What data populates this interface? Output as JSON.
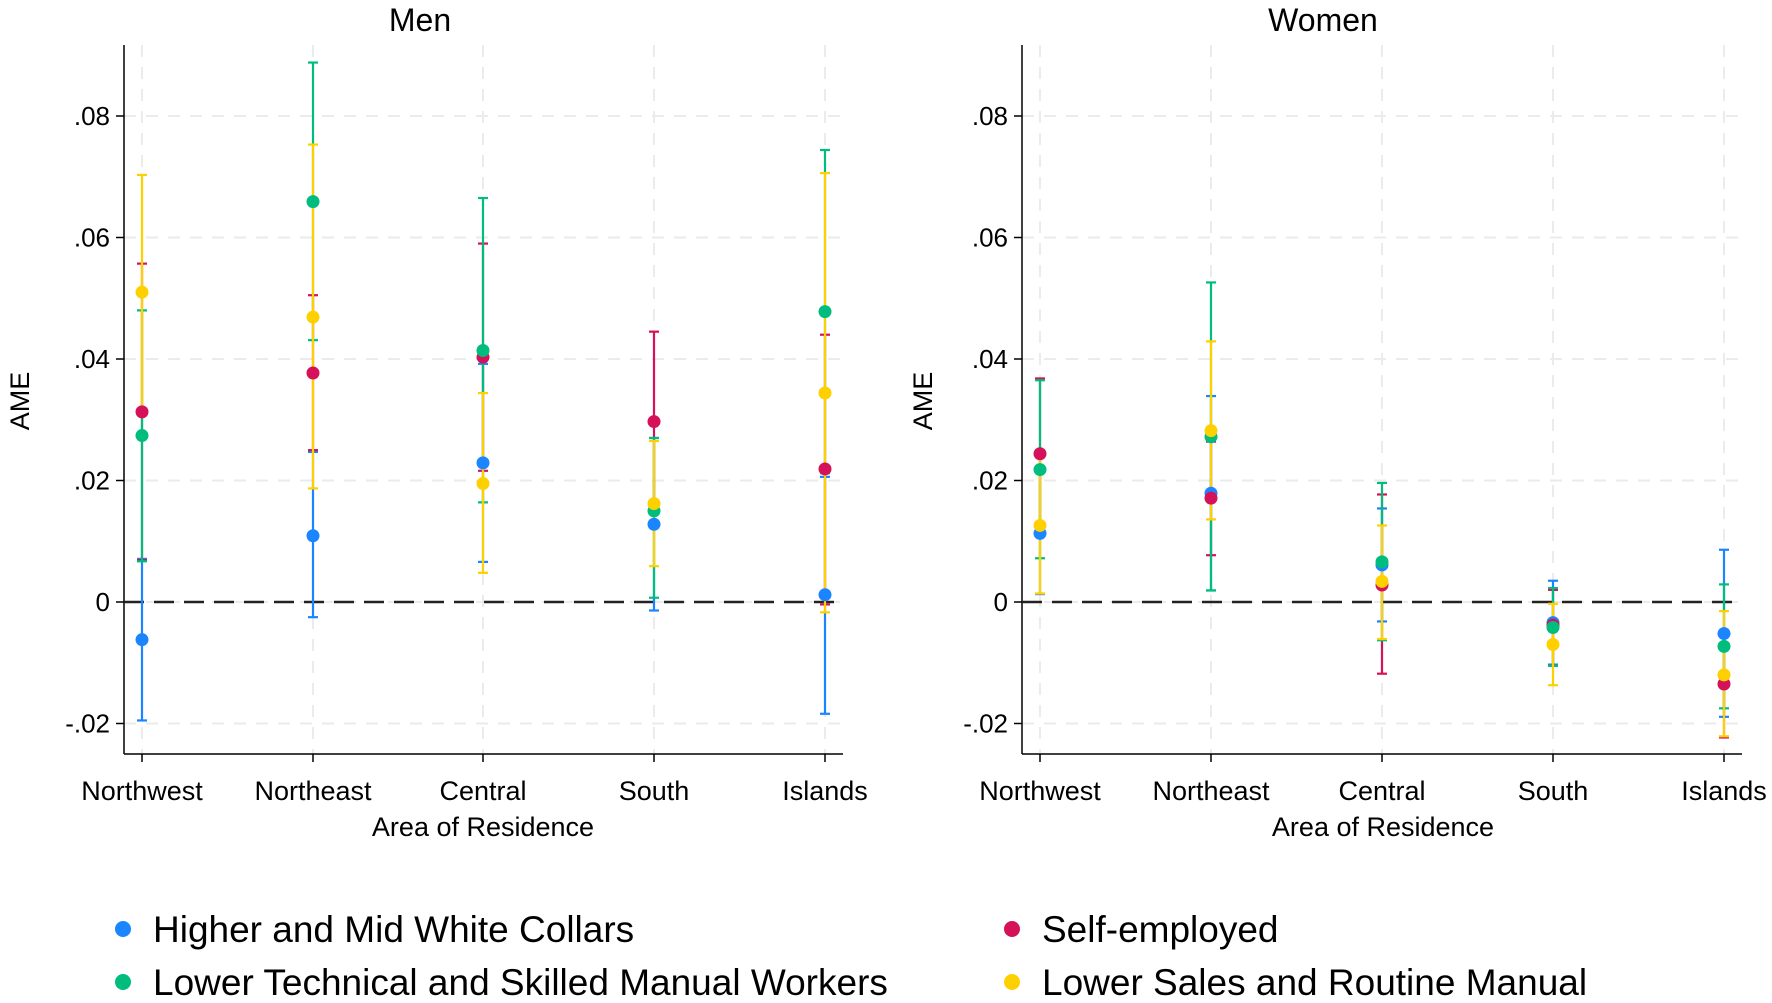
{
  "legend": {
    "placement": "bottom",
    "items": [
      {
        "label": "Higher and Mid White Collars",
        "color": "#1a85ff"
      },
      {
        "label": "Lower Technical and Skilled Manual Workers",
        "color": "#00bd7e"
      },
      {
        "label": "Self-employed",
        "color": "#d41159"
      },
      {
        "label": "Lower Sales and Routine Manual",
        "color": "#ffd000"
      }
    ]
  },
  "chart_data": [
    {
      "type": "scatter",
      "subtype": "point estimates with confidence intervals",
      "title": "Men",
      "xlabel": "Area of Residence",
      "ylabel": "AME",
      "categories": [
        "Northwest",
        "Northeast",
        "Central",
        "South",
        "Islands"
      ],
      "yticks": [
        -0.02,
        0,
        0.02,
        0.04,
        0.06,
        0.08
      ],
      "ytick_labels": [
        "-.02",
        "0",
        ".02",
        ".04",
        ".06",
        ".08"
      ],
      "ylim": [
        -0.025,
        0.0915
      ],
      "reference_line": 0,
      "grid": true,
      "series": [
        {
          "name": "Higher and Mid White Collars",
          "values": [
            -0.0062,
            0.0109,
            0.0229,
            0.0128,
            0.0012
          ],
          "ci_low": [
            -0.0195,
            -0.0025,
            0.0066,
            -0.0014,
            -0.0184
          ],
          "ci_high": [
            0.0071,
            0.0247,
            0.0392,
            0.027,
            0.0206
          ]
        },
        {
          "name": "Self-employed",
          "values": [
            0.0313,
            0.0377,
            0.0403,
            0.0297,
            0.0219
          ],
          "ci_low": [
            0.0069,
            0.025,
            0.0216,
            0.015,
            -0.0004
          ],
          "ci_high": [
            0.0557,
            0.0505,
            0.059,
            0.0445,
            0.044
          ]
        },
        {
          "name": "Lower Technical and Skilled Manual Workers",
          "values": [
            0.0274,
            0.0659,
            0.0414,
            0.015,
            0.0478
          ],
          "ci_low": [
            0.0067,
            0.0431,
            0.0164,
            0.0007,
            0.0212
          ],
          "ci_high": [
            0.048,
            0.0888,
            0.0665,
            0.027,
            0.0744
          ]
        },
        {
          "name": "Lower Sales and Routine Manual",
          "values": [
            0.051,
            0.0469,
            0.0195,
            0.0162,
            0.0344
          ],
          "ci_low": [
            0.0317,
            0.0187,
            0.0048,
            0.0059,
            -0.0017
          ],
          "ci_high": [
            0.0703,
            0.0753,
            0.0344,
            0.0265,
            0.0706
          ]
        }
      ]
    },
    {
      "type": "scatter",
      "subtype": "point estimates with confidence intervals",
      "title": "Women",
      "xlabel": "Area of Residence",
      "ylabel": "AME",
      "categories": [
        "Northwest",
        "Northeast",
        "Central",
        "South",
        "Islands"
      ],
      "yticks": [
        -0.02,
        0,
        0.02,
        0.04,
        0.06,
        0.08
      ],
      "ytick_labels": [
        "-.02",
        "0",
        ".02",
        ".04",
        ".06",
        ".08"
      ],
      "ylim": [
        -0.025,
        0.0915
      ],
      "reference_line": 0,
      "grid": true,
      "series": [
        {
          "name": "Higher and Mid White Collars",
          "values": [
            0.0113,
            0.0179,
            0.0061,
            -0.0034,
            -0.0052
          ],
          "ci_low": [
            0.0013,
            0.0019,
            -0.0032,
            -0.0103,
            -0.0189
          ],
          "ci_high": [
            0.0215,
            0.0339,
            0.0154,
            0.0035,
            0.0086
          ]
        },
        {
          "name": "Self-employed",
          "values": [
            0.0244,
            0.0171,
            0.0028,
            -0.0038,
            -0.0135
          ],
          "ci_low": [
            0.012,
            0.0077,
            -0.0118,
            -0.0105,
            -0.0223
          ],
          "ci_high": [
            0.0368,
            0.0264,
            0.0177,
            0.002,
            -0.0047
          ]
        },
        {
          "name": "Lower Technical and Skilled Manual Workers",
          "values": [
            0.0218,
            0.0272,
            0.0066,
            -0.0042,
            -0.0073
          ],
          "ci_low": [
            0.0072,
            0.0019,
            -0.0063,
            -0.0105,
            -0.0175
          ],
          "ci_high": [
            0.0365,
            0.0526,
            0.0196,
            0.0023,
            0.0029
          ]
        },
        {
          "name": "Lower Sales and Routine Manual",
          "values": [
            0.0126,
            0.0282,
            0.0034,
            -0.007,
            -0.012
          ],
          "ci_low": [
            0.0014,
            0.0136,
            -0.0061,
            -0.0137,
            -0.0221
          ],
          "ci_high": [
            0.024,
            0.0429,
            0.0126,
            -0.0003,
            -0.0015
          ]
        }
      ]
    }
  ]
}
